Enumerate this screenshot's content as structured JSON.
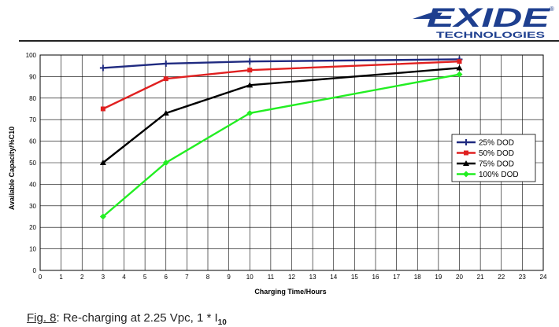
{
  "brand": {
    "name": "EXIDE",
    "subtitle": "TECHNOLOGIES",
    "registered": "®",
    "color": "#1e3f8f"
  },
  "caption": {
    "figure": "Fig. 8",
    "text": ": Re-charging at 2.25 Vpc, 1 * I",
    "subscript": "10"
  },
  "chart_data": {
    "type": "line",
    "xlabel": "Charging Time/Hours",
    "ylabel": "Available Capacity/%C10",
    "xlim": [
      0,
      24
    ],
    "ylim": [
      0,
      100
    ],
    "x_ticks": [
      0,
      1,
      2,
      3,
      4,
      5,
      6,
      7,
      8,
      9,
      10,
      11,
      12,
      13,
      14,
      15,
      16,
      17,
      18,
      19,
      20,
      21,
      22,
      23,
      24
    ],
    "y_ticks": [
      0,
      10,
      20,
      30,
      40,
      50,
      60,
      70,
      80,
      90,
      100
    ],
    "grid": true,
    "legend_position": "right",
    "x": [
      3,
      6,
      10,
      20
    ],
    "series": [
      {
        "name": "25% DOD",
        "values": [
          94,
          96,
          97,
          98
        ],
        "color": "#1f2a80",
        "marker": "plus"
      },
      {
        "name": "50% DOD",
        "values": [
          75,
          89,
          93,
          97
        ],
        "color": "#e02020",
        "marker": "square"
      },
      {
        "name": "75% DOD",
        "values": [
          50,
          73,
          86,
          94
        ],
        "color": "#000000",
        "marker": "triangle"
      },
      {
        "name": "100% DOD",
        "values": [
          25,
          50,
          73,
          91
        ],
        "color": "#22ee22",
        "marker": "diamond"
      }
    ]
  }
}
